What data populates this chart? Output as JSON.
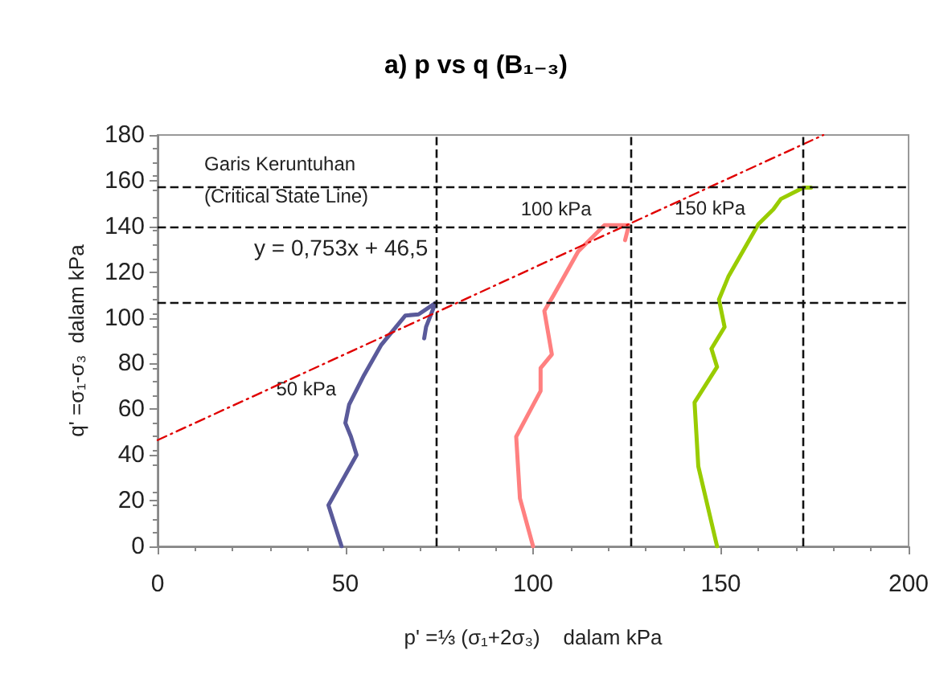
{
  "chart_data": {
    "type": "line",
    "title": "a) p vs q (B₁₋₃)",
    "xlabel": "p' =⅓ (σ₁+2σ₃)    dalam kPa",
    "ylabel": "q' =σ₁-σ₃  dalam kPa",
    "xlim": [
      0,
      200
    ],
    "xticks": [
      0,
      50,
      100,
      150,
      200
    ],
    "ylim": [
      0,
      180
    ],
    "yticks": [
      0,
      20,
      40,
      60,
      80,
      100,
      120,
      140,
      160,
      180
    ],
    "grid": false,
    "marker": "none",
    "series": [
      {
        "color": "#5a5a9a",
        "x": [
          49,
          45.5,
          53,
          51.5,
          50,
          51,
          55,
          59.5,
          66,
          69.5,
          74,
          71.5,
          71
        ],
        "values": [
          0,
          18,
          40,
          48,
          54,
          62,
          75,
          88,
          101,
          101.5,
          106.5,
          96,
          91
        ]
      },
      {
        "color": "#ff8080",
        "x": [
          100,
          96.5,
          95.5,
          102,
          102,
          105,
          103,
          105.5,
          112,
          119,
          125.5,
          124.5
        ],
        "values": [
          0,
          21,
          48,
          68,
          78,
          84,
          103,
          110,
          129,
          140.5,
          140.5,
          134
        ]
      },
      {
        "color": "#99cc00",
        "x": [
          149,
          144,
          143,
          149,
          147.5,
          151,
          149.5,
          152,
          160,
          164,
          166,
          172,
          174
        ],
        "values": [
          0,
          35,
          63,
          78.5,
          86.5,
          96,
          108,
          118,
          141,
          147.5,
          152,
          157,
          157
        ]
      },
      {
        "color": "#e00000",
        "line_style": "dashed",
        "x": [
          0,
          177.3
        ],
        "values": [
          46.5,
          180
        ]
      }
    ],
    "ref_lines": [
      {
        "axis": "x",
        "value": 74
      },
      {
        "axis": "x",
        "value": 126
      },
      {
        "axis": "x",
        "value": 172
      },
      {
        "axis": "y",
        "value": 106.5
      },
      {
        "axis": "y",
        "value": 140
      },
      {
        "axis": "y",
        "value": 157
      }
    ],
    "annotations": [
      "Garis Keruntuhan\n(Critical State Line)",
      "y = 0,753x + 46,5",
      {
        "text": "50 kPa",
        "x": 51,
        "y": 62
      },
      {
        "text": "100 kPa",
        "x": 119,
        "y": 140.5
      },
      {
        "text": "150 kPa",
        "x": 160,
        "y": 141
      }
    ]
  }
}
